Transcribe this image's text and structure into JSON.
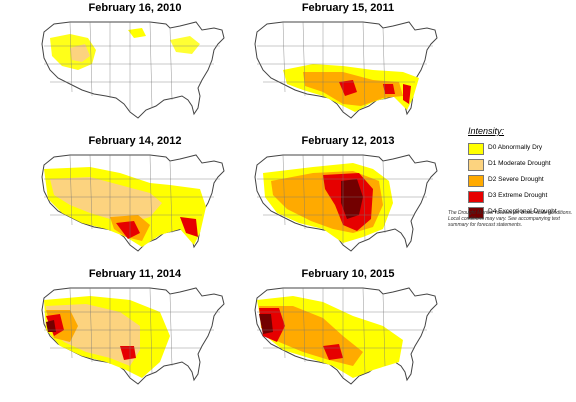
{
  "legend": {
    "title": "Intensity:",
    "items": [
      {
        "label": "D0 Abnormally Dry",
        "color": "#ffff00"
      },
      {
        "label": "D1 Moderate Drought",
        "color": "#fcd37f"
      },
      {
        "label": "D2 Severe Drought",
        "color": "#ffaa00"
      },
      {
        "label": "D3 Extreme Drought",
        "color": "#e60000"
      },
      {
        "label": "D4 Exceptional Drought",
        "color": "#730000"
      }
    ],
    "note": "The Drought Monitor focuses on broad-scale conditions. Local conditions may vary. See accompanying text summary for forecast statements."
  },
  "maps": [
    {
      "date": "February 16, 2010",
      "dominant_level": "D0"
    },
    {
      "date": "February 15, 2011",
      "dominant_level": "D2"
    },
    {
      "date": "February 14, 2012",
      "dominant_level": "D1"
    },
    {
      "date": "February 12, 2013",
      "dominant_level": "D4"
    },
    {
      "date": "February 11, 2014",
      "dominant_level": "D3"
    },
    {
      "date": "February 10, 2015",
      "dominant_level": "D4"
    }
  ]
}
